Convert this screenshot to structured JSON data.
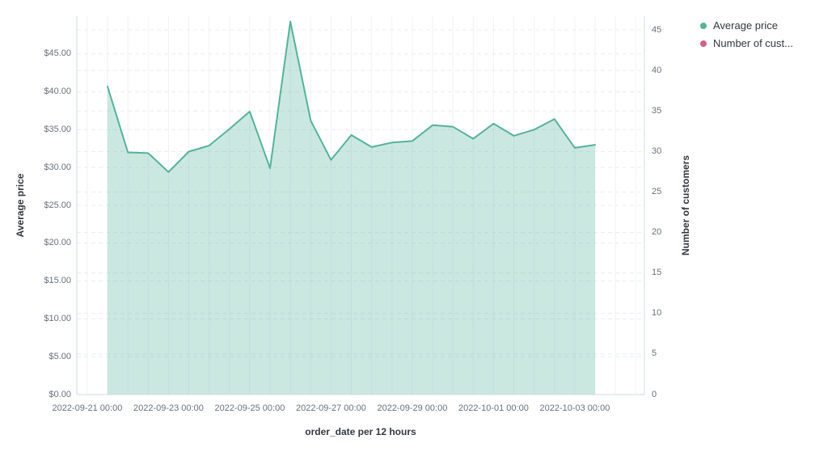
{
  "legend": {
    "position": "top-right",
    "items": [
      {
        "label": "Average price",
        "color": "#54B399"
      },
      {
        "label": "Number of cust...",
        "color": "#D36086"
      }
    ]
  },
  "axes": {
    "x": {
      "title": "order_date per 12 hours",
      "tick_labels": [
        "2022-09-21 00:00",
        "2022-09-23 00:00",
        "2022-09-25 00:00",
        "2022-09-27 00:00",
        "2022-09-29 00:00",
        "2022-10-01 00:00",
        "2022-10-03 00:00"
      ]
    },
    "y_left": {
      "title": "Average price",
      "tick_labels": [
        "$0.00",
        "$5.00",
        "$10.00",
        "$15.00",
        "$20.00",
        "$25.00",
        "$30.00",
        "$35.00",
        "$40.00",
        "$45.00"
      ],
      "tick_values": [
        0,
        5,
        10,
        15,
        20,
        25,
        30,
        35,
        40,
        45
      ],
      "max": 50.0
    },
    "y_right": {
      "title": "Number of customers",
      "tick_labels": [
        "0",
        "5",
        "10",
        "15",
        "20",
        "25",
        "30",
        "35",
        "40",
        "45"
      ],
      "tick_values": [
        0,
        5,
        10,
        15,
        20,
        25,
        30,
        35,
        40,
        45
      ],
      "max": 46.7
    }
  },
  "chart_data": {
    "type": "area",
    "title": "",
    "xlabel": "order_date per 12 hours",
    "x_interval": "12 hours",
    "x": [
      "2022-09-21 12:00",
      "2022-09-22 00:00",
      "2022-09-22 12:00",
      "2022-09-23 00:00",
      "2022-09-23 12:00",
      "2022-09-24 00:00",
      "2022-09-24 12:00",
      "2022-09-25 00:00",
      "2022-09-25 12:00",
      "2022-09-26 00:00",
      "2022-09-26 12:00",
      "2022-09-27 00:00",
      "2022-09-27 12:00",
      "2022-09-28 00:00",
      "2022-09-28 12:00",
      "2022-09-29 00:00",
      "2022-09-29 12:00",
      "2022-09-30 00:00",
      "2022-09-30 12:00",
      "2022-10-01 00:00",
      "2022-10-01 12:00",
      "2022-10-02 00:00",
      "2022-10-02 12:00",
      "2022-10-03 00:00",
      "2022-10-03 12:00"
    ],
    "series": [
      {
        "name": "Average price",
        "axis": "left",
        "ylabel": "Average price",
        "color": "#54B399",
        "fill_opacity": 0.3,
        "visible": true,
        "values": [
          40.7,
          32.0,
          31.9,
          29.4,
          32.1,
          32.9,
          35.1,
          37.4,
          29.9,
          49.3,
          36.2,
          31.0,
          34.3,
          32.7,
          33.3,
          33.5,
          35.6,
          35.4,
          33.8,
          35.8,
          34.2,
          35.0,
          36.4,
          32.6,
          33.0
        ]
      },
      {
        "name": "Number of customers",
        "axis": "right",
        "ylabel": "Number of customers",
        "color": "#D36086",
        "visible": false,
        "values": []
      }
    ],
    "ylim_left": [
      0,
      50
    ],
    "ylim_right": [
      0,
      46.7
    ],
    "grid": true,
    "legend_position": "top-right"
  },
  "colors": {
    "grid_dashed": "#e8ecf2",
    "grid_vertical": "#f0f2f7",
    "plot_border": "#d3dae6",
    "tick_text": "#69707d",
    "title_text": "#343741"
  }
}
